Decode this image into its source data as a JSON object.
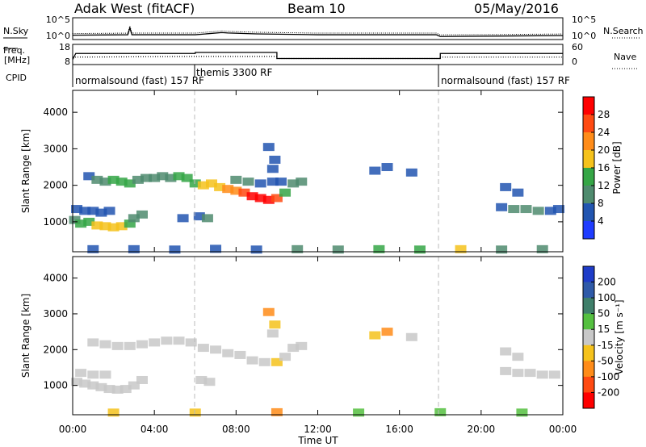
{
  "header": {
    "station": "Adak West (fitACF)",
    "beam": "Beam 10",
    "date": "05/May/2016"
  },
  "params": {
    "nsky_label": "N.Sky",
    "nsearch_label": "N.Search",
    "freq_label_1": "Freq.",
    "freq_label_2": "[MHz]",
    "nave_label": "Nave",
    "cpid_label": "CPID",
    "nsky_ticks": [
      "10^5",
      "10^0"
    ],
    "nsearch_ticks": [
      "10^5",
      "10^0"
    ],
    "freq_ticks": [
      "18",
      "8"
    ],
    "nave_ticks": [
      "60",
      "0"
    ]
  },
  "cpid_segments": [
    {
      "label": "normalsound (fast) 157 RF",
      "start": 0,
      "end": 6
    },
    {
      "label": "themis 3300 RF",
      "start": 6,
      "end": 18
    },
    {
      "label": "normalsound (fast) 157 RF",
      "start": 18,
      "end": 24
    }
  ],
  "time_axis": {
    "label": "Time UT",
    "ticks": [
      "00:00",
      "04:00",
      "08:00",
      "12:00",
      "16:00",
      "20:00",
      "00:00"
    ]
  },
  "range_axis": {
    "label": "Slant Range [km]",
    "ticks": [
      "1000",
      "2000",
      "3000",
      "4000"
    ]
  },
  "colorbars": {
    "power": {
      "label": "Power [dB]",
      "ticks": [
        "4",
        "8",
        "12",
        "16",
        "20",
        "24",
        "28"
      ],
      "colors": [
        "#1f3cff",
        "#2255b0",
        "#4f8b6e",
        "#35a646",
        "#f5c21c",
        "#ff8c19",
        "#ff4a12",
        "#ff0000"
      ]
    },
    "velocity": {
      "label": "Velocity [m s⁻¹]",
      "ticks": [
        "200",
        "100",
        "50",
        "15",
        "-15",
        "-50",
        "-100",
        "-200"
      ],
      "colors": [
        "#1e3cc8",
        "#2f5aa8",
        "#3f7f6a",
        "#55c040",
        "#c8c8c8",
        "#f5c21c",
        "#ff8c19",
        "#ff4a12",
        "#ff0000"
      ]
    }
  },
  "chart_data": [
    {
      "type": "heatmap",
      "title": "Power",
      "xlabel": "Time UT",
      "ylabel": "Slant Range [km]",
      "xlim": [
        0,
        24
      ],
      "ylim": [
        180,
        4600
      ],
      "colorbar": "Power [dB]",
      "series": [
        {
          "values": [
            [
              0.1,
              1050,
              10
            ],
            [
              0.4,
              950,
              12
            ],
            [
              0.8,
              1000,
              14
            ],
            [
              1.2,
              900,
              16
            ],
            [
              1.6,
              880,
              18
            ],
            [
              2.0,
              850,
              19
            ],
            [
              2.4,
              880,
              17
            ],
            [
              2.8,
              950,
              14
            ],
            [
              3.0,
              1100,
              10
            ],
            [
              3.4,
              1200,
              8
            ],
            [
              0.2,
              1350,
              6
            ],
            [
              0.6,
              1300,
              6
            ],
            [
              1.0,
              1300,
              6
            ],
            [
              1.4,
              1250,
              5
            ],
            [
              1.8,
              1300,
              5
            ],
            [
              0.8,
              2250,
              6
            ],
            [
              1.2,
              2150,
              8
            ],
            [
              1.6,
              2100,
              10
            ],
            [
              2.0,
              2150,
              12
            ],
            [
              2.4,
              2100,
              14
            ],
            [
              2.8,
              2050,
              12
            ],
            [
              3.2,
              2150,
              10
            ],
            [
              3.6,
              2200,
              10
            ],
            [
              4.0,
              2200,
              10
            ],
            [
              4.4,
              2250,
              9
            ],
            [
              4.8,
              2200,
              10
            ],
            [
              5.2,
              2250,
              12
            ],
            [
              5.6,
              2200,
              12
            ],
            [
              6.0,
              2050,
              14
            ],
            [
              6.4,
              2000,
              16
            ],
            [
              6.8,
              2050,
              16
            ],
            [
              7.2,
              1950,
              18
            ],
            [
              7.6,
              1900,
              20
            ],
            [
              8.0,
              1850,
              22
            ],
            [
              8.4,
              1800,
              24
            ],
            [
              8.8,
              1700,
              28
            ],
            [
              9.2,
              1650,
              30
            ],
            [
              9.6,
              1600,
              30
            ],
            [
              10.0,
              1650,
              24
            ],
            [
              10.4,
              1800,
              14
            ],
            [
              10.8,
              2050,
              10
            ],
            [
              11.2,
              2100,
              8
            ],
            [
              8.0,
              2150,
              8
            ],
            [
              8.6,
              2100,
              8
            ],
            [
              9.2,
              2050,
              6
            ],
            [
              9.8,
              2100,
              6
            ],
            [
              10.2,
              2100,
              6
            ],
            [
              9.8,
              2450,
              6
            ],
            [
              9.6,
              3050,
              6
            ],
            [
              9.9,
              2700,
              6
            ],
            [
              6.2,
              1150,
              6
            ],
            [
              6.6,
              1100,
              8
            ],
            [
              5.4,
              1100,
              6
            ],
            [
              14.8,
              2400,
              6
            ],
            [
              15.4,
              2500,
              6
            ],
            [
              16.6,
              2350,
              6
            ],
            [
              21.2,
              1950,
              6
            ],
            [
              21.8,
              1800,
              6
            ],
            [
              21.0,
              1400,
              6
            ],
            [
              21.6,
              1350,
              8
            ],
            [
              22.2,
              1350,
              8
            ],
            [
              22.8,
              1300,
              8
            ],
            [
              23.4,
              1300,
              6
            ],
            [
              23.8,
              1350,
              6
            ],
            [
              1.0,
              250,
              4
            ],
            [
              3.0,
              250,
              4
            ],
            [
              5.0,
              240,
              6
            ],
            [
              7.0,
              260,
              6
            ],
            [
              9.0,
              240,
              6
            ],
            [
              11.0,
              250,
              8
            ],
            [
              13.0,
              240,
              10
            ],
            [
              15.0,
              250,
              12
            ],
            [
              17.0,
              240,
              14
            ],
            [
              19.0,
              250,
              16
            ],
            [
              21.0,
              240,
              10
            ],
            [
              23.0,
              250,
              8
            ]
          ]
        }
      ]
    },
    {
      "type": "heatmap",
      "title": "Velocity",
      "xlabel": "Time UT",
      "ylabel": "Slant Range [km]",
      "xlim": [
        0,
        24
      ],
      "ylim": [
        180,
        4600
      ],
      "colorbar": "Velocity [m s⁻¹]",
      "series": [
        {
          "values": [
            [
              0.2,
              1100,
              -5
            ],
            [
              0.6,
              1050,
              0
            ],
            [
              1.0,
              1000,
              5
            ],
            [
              1.4,
              950,
              0
            ],
            [
              1.8,
              900,
              -5
            ],
            [
              2.2,
              880,
              0
            ],
            [
              2.6,
              900,
              5
            ],
            [
              3.0,
              1000,
              0
            ],
            [
              3.4,
              1150,
              -5
            ],
            [
              0.4,
              1350,
              5
            ],
            [
              1.0,
              1300,
              0
            ],
            [
              1.6,
              1300,
              -5
            ],
            [
              1.0,
              2200,
              0
            ],
            [
              1.6,
              2150,
              5
            ],
            [
              2.2,
              2100,
              0
            ],
            [
              2.8,
              2100,
              -5
            ],
            [
              3.4,
              2150,
              0
            ],
            [
              4.0,
              2200,
              5
            ],
            [
              4.6,
              2250,
              0
            ],
            [
              5.2,
              2250,
              -5
            ],
            [
              5.8,
              2200,
              0
            ],
            [
              6.4,
              2050,
              5
            ],
            [
              7.0,
              2000,
              0
            ],
            [
              7.6,
              1900,
              -5
            ],
            [
              8.2,
              1850,
              0
            ],
            [
              8.8,
              1700,
              5
            ],
            [
              9.4,
              1650,
              0
            ],
            [
              10.0,
              1650,
              -30
            ],
            [
              10.4,
              1800,
              -5
            ],
            [
              10.8,
              2050,
              0
            ],
            [
              11.2,
              2100,
              5
            ],
            [
              9.6,
              3050,
              -40
            ],
            [
              9.9,
              2700,
              -20
            ],
            [
              9.8,
              2450,
              -10
            ],
            [
              6.3,
              1150,
              0
            ],
            [
              6.7,
              1100,
              5
            ],
            [
              14.8,
              2400,
              -30
            ],
            [
              15.4,
              2500,
              -40
            ],
            [
              16.6,
              2350,
              10
            ],
            [
              21.2,
              1950,
              0
            ],
            [
              21.8,
              1800,
              5
            ],
            [
              21.2,
              1400,
              0
            ],
            [
              21.8,
              1350,
              5
            ],
            [
              22.4,
              1350,
              0
            ],
            [
              23.0,
              1300,
              -5
            ],
            [
              23.6,
              1300,
              0
            ],
            [
              2.0,
              240,
              -20
            ],
            [
              6.0,
              240,
              -30
            ],
            [
              10.0,
              250,
              -40
            ],
            [
              14.0,
              240,
              25
            ],
            [
              18.0,
              250,
              30
            ],
            [
              22.0,
              240,
              20
            ]
          ]
        }
      ]
    },
    {
      "type": "line",
      "title": "N.Sky",
      "xlim": [
        0,
        24
      ],
      "series": [
        {
          "name": "N.Sky",
          "values": [
            [
              0,
              1.0
            ],
            [
              2.7,
              1.1
            ],
            [
              2.8,
              2.7
            ],
            [
              2.9,
              1.1
            ],
            [
              6,
              1.1
            ],
            [
              7.3,
              1.6
            ],
            [
              7.6,
              1.5
            ],
            [
              9,
              1.3
            ],
            [
              12,
              1.1
            ],
            [
              17.8,
              1.1
            ],
            [
              18,
              0.7
            ],
            [
              24,
              0.9
            ]
          ]
        }
      ]
    },
    {
      "type": "line",
      "title": "Freq. [MHz]",
      "xlim": [
        0,
        24
      ],
      "ylim": [
        8,
        18
      ],
      "series": [
        {
          "name": "Freq.",
          "values": [
            [
              0,
              10.5
            ],
            [
              0.15,
              13.5
            ],
            [
              6,
              13.5
            ],
            [
              6,
              14
            ],
            [
              10,
              14
            ],
            [
              10,
              11
            ],
            [
              18,
              11
            ],
            [
              18,
              13.5
            ],
            [
              24,
              13.5
            ]
          ]
        }
      ]
    },
    {
      "type": "line",
      "title": "Nave",
      "xlim": [
        0,
        24
      ],
      "ylim": [
        0,
        60
      ],
      "series": [
        {
          "name": "Nave",
          "values": [
            [
              0,
              22
            ],
            [
              6,
              24
            ],
            [
              10,
              24
            ],
            [
              10,
              18
            ],
            [
              18,
              18
            ],
            [
              18,
              22
            ],
            [
              24,
              22
            ]
          ]
        }
      ]
    }
  ]
}
